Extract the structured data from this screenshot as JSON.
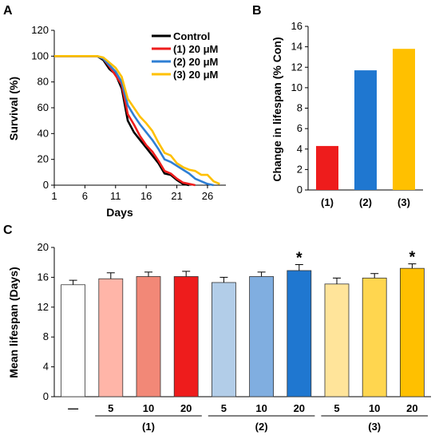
{
  "panels": [
    "A",
    "B",
    "C"
  ],
  "chart_data": [
    {
      "panel": "A",
      "type": "line",
      "xlabel": "Days",
      "ylabel": "Survival (%)",
      "xlim": [
        1,
        29
      ],
      "ylim": [
        0,
        120
      ],
      "xticks": [
        "1",
        "6",
        "11",
        "16",
        "21",
        "26"
      ],
      "yticks": [
        "0",
        "20",
        "40",
        "60",
        "80",
        "100",
        "120"
      ],
      "legend_position": "top-right",
      "series": [
        {
          "name": "Control",
          "color": "#000000",
          "x": [
            1,
            8,
            9,
            10,
            11,
            12,
            13,
            14,
            15,
            16,
            17,
            18,
            19,
            20,
            21,
            22,
            23
          ],
          "y": [
            100,
            100,
            97,
            90,
            86,
            75,
            50,
            41,
            35,
            29,
            23,
            17,
            9,
            8,
            4,
            1,
            0
          ]
        },
        {
          "name": "(1) 20 μM",
          "color": "#ee1c1c",
          "x": [
            1,
            8,
            9,
            10,
            11,
            12,
            13,
            14,
            15,
            16,
            17,
            18,
            19,
            20,
            21,
            22,
            23,
            24
          ],
          "y": [
            100,
            100,
            98,
            92,
            85,
            78,
            55,
            47,
            38,
            31,
            26,
            19,
            11,
            9,
            5,
            2,
            1,
            0
          ]
        },
        {
          "name": "(2) 20 μM",
          "color": "#2f7fd4",
          "x": [
            1,
            8,
            9,
            10,
            11,
            12,
            13,
            14,
            15,
            16,
            17,
            18,
            19,
            20,
            21,
            22,
            23,
            24,
            25,
            26,
            27
          ],
          "y": [
            100,
            100,
            98,
            93,
            88,
            80,
            62,
            54,
            47,
            41,
            35,
            28,
            20,
            18,
            15,
            12,
            9,
            5,
            3,
            1,
            0
          ]
        },
        {
          "name": "(3) 20 μM",
          "color": "#ffc000",
          "x": [
            1,
            8,
            9,
            10,
            11,
            12,
            13,
            14,
            15,
            16,
            17,
            18,
            19,
            20,
            21,
            22,
            23,
            24,
            25,
            26,
            27,
            28
          ],
          "y": [
            100,
            100,
            99,
            95,
            91,
            84,
            67,
            60,
            53,
            48,
            42,
            33,
            25,
            23,
            17,
            14,
            12,
            11,
            8,
            8,
            3,
            1
          ]
        }
      ]
    },
    {
      "panel": "B",
      "type": "bar",
      "ylabel": "Change in lifespan (% Con)",
      "categories": [
        "(1)",
        "(2)",
        "(3)"
      ],
      "values": [
        4.3,
        11.7,
        13.8
      ],
      "colors": [
        "#ee1c1c",
        "#1f77d0",
        "#ffc000"
      ],
      "ylim": [
        0,
        16
      ],
      "yticks": [
        "0",
        "2",
        "4",
        "6",
        "8",
        "10",
        "12",
        "14",
        "16"
      ]
    },
    {
      "panel": "C",
      "type": "bar",
      "ylabel": "Mean lifespan (Days)",
      "ylim": [
        0,
        20
      ],
      "yticks": [
        "0",
        "4",
        "8",
        "12",
        "16",
        "20"
      ],
      "categories": [
        "—",
        "5",
        "10",
        "20",
        "5",
        "10",
        "20",
        "5",
        "10",
        "20"
      ],
      "values": [
        15.0,
        15.8,
        16.1,
        16.1,
        15.3,
        16.1,
        16.9,
        15.1,
        15.9,
        17.2
      ],
      "errors": [
        0.6,
        0.8,
        0.6,
        0.7,
        0.7,
        0.6,
        0.8,
        0.8,
        0.6,
        0.6
      ],
      "colors": [
        "#ffffff",
        "#ffb5a8",
        "#f28877",
        "#ee1c1c",
        "#b2cde8",
        "#80aee0",
        "#1f77d0",
        "#ffe49a",
        "#ffd64f",
        "#ffc000"
      ],
      "significance": [
        "",
        "",
        "",
        "",
        "",
        "",
        "*",
        "",
        "",
        "*"
      ],
      "groups": [
        {
          "label": "(1)",
          "start": 1,
          "end": 3
        },
        {
          "label": "(2)",
          "start": 4,
          "end": 6
        },
        {
          "label": "(3)",
          "start": 7,
          "end": 9
        }
      ]
    }
  ]
}
